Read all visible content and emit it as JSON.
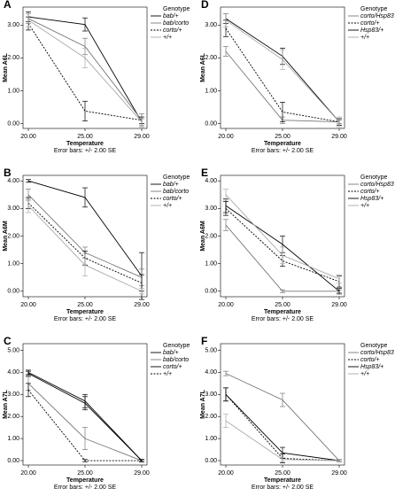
{
  "chart_data": [
    {
      "type": "line",
      "panel": "A",
      "categories": [
        "20.00",
        "25.00",
        "29.00"
      ],
      "x_label": "Temperature",
      "y_label": "Mean A6L",
      "subtitle": "Error bars: +/- 2.00 SE",
      "legend_title": "Genotype",
      "ylim": [
        -0.15,
        3.55
      ],
      "yticks": [
        {
          "value": 0,
          "label": "0.00"
        },
        {
          "value": 1,
          "label": "1.00"
        },
        {
          "value": 2,
          "label": "2.00"
        },
        {
          "value": 3,
          "label": "3.00"
        }
      ],
      "series": [
        {
          "name": "bab/+",
          "color": "#000000",
          "style": "solid",
          "values": [
            3.25,
            3.02,
            0.05
          ],
          "errors": [
            0.15,
            0.2,
            0.1
          ]
        },
        {
          "name": "bab/corto",
          "color": "#777777",
          "style": "solid",
          "values": [
            3.2,
            2.35,
            0.1
          ],
          "errors": [
            0.15,
            0.25,
            0.2
          ]
        },
        {
          "name": "corto/+",
          "color": "#000000",
          "style": "dotted",
          "values": [
            3.05,
            0.38,
            0.1
          ],
          "errors": [
            0.2,
            0.3,
            0.1
          ]
        },
        {
          "name": "+/+",
          "color": "#aaaaaa",
          "style": "solid",
          "values": [
            3.15,
            2.0,
            0.05
          ],
          "errors": [
            0.2,
            0.3,
            0.1
          ]
        }
      ]
    },
    {
      "type": "line",
      "panel": "D",
      "categories": [
        "20.00",
        "25.00",
        "29.00"
      ],
      "x_label": "Temperature",
      "y_label": "Mean A6L",
      "subtitle": "Error bars: +/- 2.00 SE",
      "legend_title": "Genotype",
      "ylim": [
        -0.15,
        3.55
      ],
      "yticks": [
        {
          "value": 0,
          "label": "0.00"
        },
        {
          "value": 1,
          "label": "1.00"
        },
        {
          "value": 2,
          "label": "2.00"
        },
        {
          "value": 3,
          "label": "3.00"
        }
      ],
      "series": [
        {
          "name": "corto/Hsp83",
          "color": "#777777",
          "style": "solid",
          "values": [
            2.2,
            0.1,
            0.05
          ],
          "errors": [
            0.15,
            0.1,
            0.05
          ]
        },
        {
          "name": "corto/+",
          "color": "#000000",
          "style": "dotted",
          "values": [
            2.9,
            0.35,
            0.05
          ],
          "errors": [
            0.25,
            0.3,
            0.1
          ]
        },
        {
          "name": "Hsp83/+",
          "color": "#000000",
          "style": "solid",
          "values": [
            3.2,
            2.05,
            0.05
          ],
          "errors": [
            0.15,
            0.25,
            0.1
          ]
        },
        {
          "name": "+/+",
          "color": "#aaaaaa",
          "style": "solid",
          "values": [
            3.15,
            1.95,
            0.05
          ],
          "errors": [
            0.2,
            0.3,
            0.15
          ]
        }
      ]
    },
    {
      "type": "line",
      "panel": "B",
      "categories": [
        "20.00",
        "25.00",
        "29.00"
      ],
      "x_label": "Temperature",
      "y_label": "Mean A6M",
      "subtitle": "Error bars: +/- 2.00 SE",
      "legend_title": "Genotype",
      "ylim": [
        -0.2,
        4.2
      ],
      "yticks": [
        {
          "value": 0,
          "label": "0.00"
        },
        {
          "value": 1,
          "label": "1.00"
        },
        {
          "value": 2,
          "label": "2.00"
        },
        {
          "value": 3,
          "label": "3.00"
        },
        {
          "value": 4,
          "label": "4.00"
        }
      ],
      "series": [
        {
          "name": "bab/+",
          "color": "#000000",
          "style": "solid",
          "values": [
            4.0,
            3.4,
            0.55
          ],
          "errors": [
            0.05,
            0.35,
            0.85
          ]
        },
        {
          "name": "bab/corto",
          "color": "#777777",
          "style": "solid",
          "values": [
            3.5,
            1.4,
            0.5
          ],
          "errors": [
            0.2,
            0.2,
            0.3
          ]
        },
        {
          "name": "corto/+",
          "color": "#000000",
          "style": "dotted",
          "values": [
            3.2,
            1.2,
            0.3
          ],
          "errors": [
            0.2,
            0.25,
            0.3
          ]
        },
        {
          "name": "+/+",
          "color": "#aaaaaa",
          "style": "solid",
          "values": [
            3.1,
            0.95,
            0.0
          ],
          "errors": [
            0.25,
            0.4,
            0.1
          ]
        }
      ]
    },
    {
      "type": "line",
      "panel": "E",
      "categories": [
        "20.00",
        "25.00",
        "29.00"
      ],
      "x_label": "Temperature",
      "y_label": "Mean A6M",
      "subtitle": "Error bars: +/- 2.00 SE",
      "legend_title": "Genotype",
      "ylim": [
        -0.2,
        4.2
      ],
      "yticks": [
        {
          "value": 0,
          "label": "0.00"
        },
        {
          "value": 1,
          "label": "1.00"
        },
        {
          "value": 2,
          "label": "2.00"
        },
        {
          "value": 3,
          "label": "3.00"
        },
        {
          "value": 4,
          "label": "4.00"
        }
      ],
      "series": [
        {
          "name": "corto/Hsp83",
          "color": "#777777",
          "style": "solid",
          "values": [
            2.4,
            0.0,
            0.0
          ],
          "errors": [
            0.2,
            0.05,
            0.05
          ]
        },
        {
          "name": "corto/+",
          "color": "#000000",
          "style": "dotted",
          "values": [
            3.0,
            1.1,
            0.35
          ],
          "errors": [
            0.25,
            0.2,
            0.2
          ]
        },
        {
          "name": "Hsp83/+",
          "color": "#000000",
          "style": "solid",
          "values": [
            3.1,
            1.7,
            0.0
          ],
          "errors": [
            0.25,
            0.3,
            0.1
          ]
        },
        {
          "name": "+/+",
          "color": "#aaaaaa",
          "style": "solid",
          "values": [
            3.5,
            1.3,
            0.45
          ],
          "errors": [
            0.2,
            0.3,
            0.15
          ]
        }
      ]
    },
    {
      "type": "line",
      "panel": "C",
      "categories": [
        "20.00",
        "25.00",
        "29.00"
      ],
      "x_label": "Temperature",
      "y_label": "Mean A7L",
      "subtitle": "Error bars: +/- 2.00 SE",
      "legend_title": "Genotype",
      "ylim": [
        -0.2,
        5.3
      ],
      "yticks": [
        {
          "value": 0,
          "label": "0.00"
        },
        {
          "value": 1,
          "label": "1.00"
        },
        {
          "value": 2,
          "label": "2.00"
        },
        {
          "value": 3,
          "label": "3.00"
        },
        {
          "value": 4,
          "label": "4.00"
        },
        {
          "value": 5,
          "label": "5.00"
        }
      ],
      "series": [
        {
          "name": "bab/+",
          "color": "#000000",
          "style": "solid",
          "values": [
            4.0,
            2.7,
            0.0
          ],
          "errors": [
            0.1,
            0.3,
            0.05
          ]
        },
        {
          "name": "bab/corto",
          "color": "#777777",
          "style": "solid",
          "values": [
            3.5,
            1.0,
            0.0
          ],
          "errors": [
            0.3,
            0.5,
            0.05
          ]
        },
        {
          "name": "corto/+",
          "color": "#000000",
          "style": "solid",
          "values": [
            3.95,
            2.6,
            0.0
          ],
          "errors": [
            0.1,
            0.3,
            0.05
          ]
        },
        {
          "name": "+/+",
          "color": "#000000",
          "style": "dotted",
          "values": [
            3.2,
            0.0,
            0.0
          ],
          "errors": [
            0.3,
            0.05,
            0.05
          ]
        }
      ]
    },
    {
      "type": "line",
      "panel": "F",
      "categories": [
        "20.00",
        "25.00",
        "29.00"
      ],
      "x_label": "Temperature",
      "y_label": "Mean A7L",
      "subtitle": "Error bars: +/- 2.00 SE",
      "legend_title": "Genotype",
      "ylim": [
        -0.2,
        5.3
      ],
      "yticks": [
        {
          "value": 0,
          "label": "0.00"
        },
        {
          "value": 1,
          "label": "1.00"
        },
        {
          "value": 2,
          "label": "2.00"
        },
        {
          "value": 3,
          "label": "3.00"
        },
        {
          "value": 4,
          "label": "4.00"
        },
        {
          "value": 5,
          "label": "5.00"
        }
      ],
      "series": [
        {
          "name": "corto/Hsp83",
          "color": "#777777",
          "style": "solid",
          "values": [
            3.95,
            2.75,
            0.0
          ],
          "errors": [
            0.1,
            0.3,
            0.05
          ]
        },
        {
          "name": "corto/+",
          "color": "#000000",
          "style": "dotted",
          "values": [
            3.0,
            0.1,
            0.0
          ],
          "errors": [
            0.3,
            0.2,
            0.05
          ]
        },
        {
          "name": "Hsp83/+",
          "color": "#000000",
          "style": "solid",
          "values": [
            3.0,
            0.35,
            0.0
          ],
          "errors": [
            0.3,
            0.25,
            0.05
          ]
        },
        {
          "name": "+/+",
          "color": "#aaaaaa",
          "style": "solid",
          "values": [
            1.8,
            0.05,
            0.0
          ],
          "errors": [
            0.3,
            0.1,
            0.05
          ]
        }
      ]
    }
  ]
}
